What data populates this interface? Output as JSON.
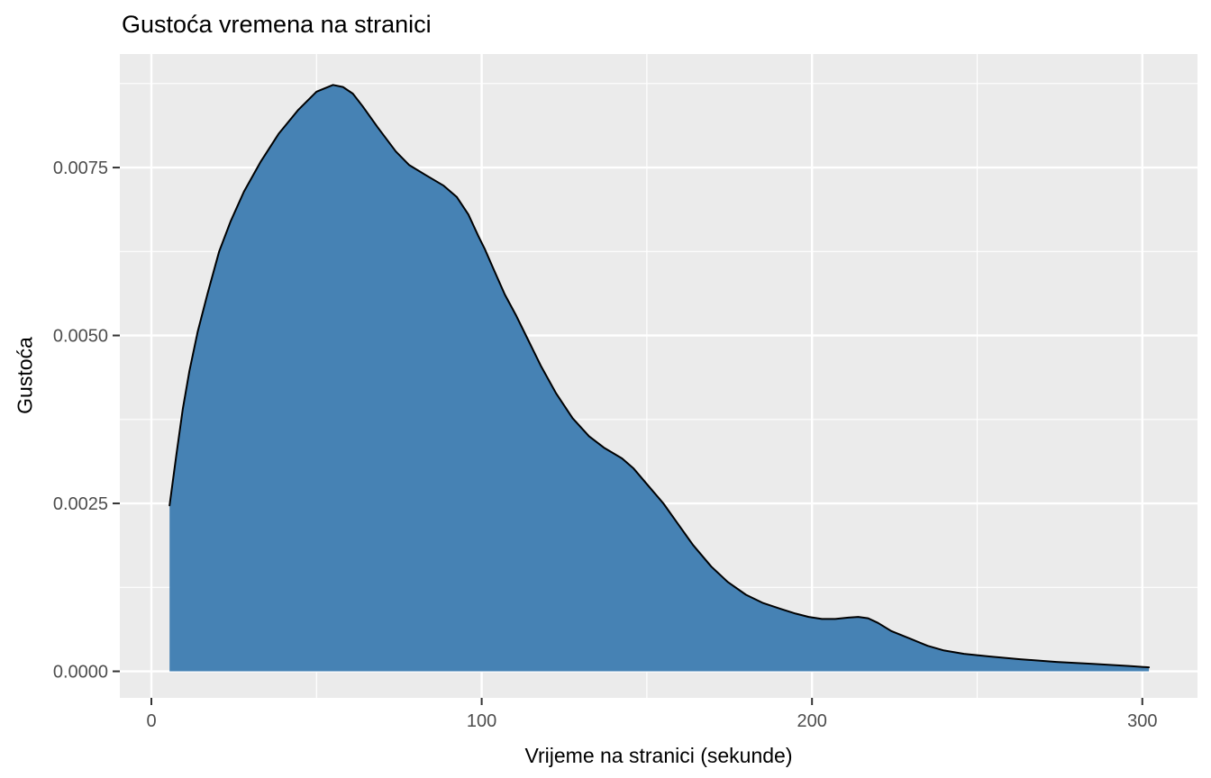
{
  "title": "Gustoća vremena na stranici",
  "chart_data": {
    "type": "area",
    "subtype": "density",
    "title": "Gustoća vremena na stranici",
    "xlabel": "Vrijeme na stranici (sekunde)",
    "ylabel": "Gustoća",
    "xlim": [
      -9.55,
      316.7
    ],
    "ylim": [
      -0.000395,
      0.00919
    ],
    "grid": "on",
    "legend": "none",
    "x_ticks": {
      "values": [
        0,
        100,
        200,
        300
      ],
      "labels": [
        "0",
        "100",
        "200",
        "300"
      ]
    },
    "y_ticks": {
      "values": [
        0,
        0.0025,
        0.005,
        0.0075
      ],
      "labels": [
        "0.0000",
        "0.0025",
        "0.0050",
        "0.0075"
      ]
    },
    "x_minor_ticks": [
      50,
      150,
      250
    ],
    "y_minor_ticks": [
      0.00125,
      0.00375,
      0.00625,
      0.00875
    ],
    "series": [
      {
        "name": "density",
        "points": [
          [
            5.5,
            0.00247
          ],
          [
            7.5,
            0.0032
          ],
          [
            9.5,
            0.0039
          ],
          [
            11.5,
            0.00447
          ],
          [
            14,
            0.00505
          ],
          [
            17,
            0.00562
          ],
          [
            20.5,
            0.00625
          ],
          [
            24,
            0.0067
          ],
          [
            28,
            0.00714
          ],
          [
            33,
            0.00758
          ],
          [
            38.5,
            0.008
          ],
          [
            44.5,
            0.00836
          ],
          [
            50,
            0.00863
          ],
          [
            55,
            0.00873
          ],
          [
            58,
            0.0087
          ],
          [
            61,
            0.0086
          ],
          [
            64,
            0.00841
          ],
          [
            68.5,
            0.0081
          ],
          [
            74,
            0.00774
          ],
          [
            78,
            0.00754
          ],
          [
            83,
            0.00739
          ],
          [
            88.5,
            0.00723
          ],
          [
            92.5,
            0.00706
          ],
          [
            96,
            0.0068
          ],
          [
            99,
            0.00648
          ],
          [
            101,
            0.00628
          ],
          [
            103.5,
            0.006
          ],
          [
            107,
            0.00561
          ],
          [
            110.5,
            0.00529
          ],
          [
            114,
            0.00494
          ],
          [
            118,
            0.00454
          ],
          [
            122.5,
            0.00414
          ],
          [
            127.5,
            0.00377
          ],
          [
            132.5,
            0.0035
          ],
          [
            137,
            0.00333
          ],
          [
            142.5,
            0.00317
          ],
          [
            146,
            0.00302
          ],
          [
            150.5,
            0.00276
          ],
          [
            155,
            0.0025
          ],
          [
            159.5,
            0.00219
          ],
          [
            164,
            0.00188
          ],
          [
            169.5,
            0.00156
          ],
          [
            174.5,
            0.00133
          ],
          [
            180,
            0.00114
          ],
          [
            185,
            0.00102
          ],
          [
            190.5,
            0.00093
          ],
          [
            195,
            0.00086
          ],
          [
            199,
            0.00081
          ],
          [
            203,
            0.00078
          ],
          [
            207,
            0.00078
          ],
          [
            211,
            0.0008
          ],
          [
            214,
            0.00081
          ],
          [
            217,
            0.00079
          ],
          [
            220,
            0.00072
          ],
          [
            224,
            0.0006
          ],
          [
            230,
            0.00048
          ],
          [
            235,
            0.00038
          ],
          [
            240,
            0.00031
          ],
          [
            246,
            0.00026
          ],
          [
            254,
            0.00022
          ],
          [
            263,
            0.00018
          ],
          [
            274,
            0.00014
          ],
          [
            285,
            0.00011
          ],
          [
            296,
            8e-05
          ],
          [
            302,
            6e-05
          ]
        ]
      }
    ],
    "colors": {
      "panel_background": "#EBEBEB",
      "grid_major": "#FFFFFF",
      "grid_minor": "#FFFFFF",
      "area_fill": "#4682B4",
      "area_fill_opacity": 0.42,
      "outline": "#000000",
      "tick_mark": "#333333",
      "tick_label": "#4D4D4D",
      "axis_title": "#000000",
      "plot_background": "#FFFFFF"
    }
  }
}
